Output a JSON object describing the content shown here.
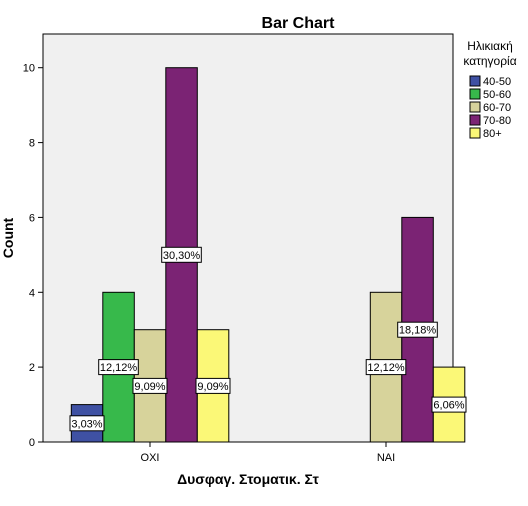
{
  "chart_data": {
    "type": "bar",
    "title": "Bar Chart",
    "xlabel": "Δυσφαγ. Στοματικ. Στ",
    "ylabel": "Count",
    "ylim": [
      0,
      10.9
    ],
    "yticks": [
      0,
      2,
      4,
      6,
      8,
      10
    ],
    "grid": false,
    "categories": [
      "ΟΧΙ",
      "ΝΑΙ"
    ],
    "legend": {
      "title_lines": [
        "Ηλικιακή",
        "κατηγορία"
      ],
      "placement": "right"
    },
    "series": [
      {
        "name": "40-50",
        "color": "#3f51a3",
        "values": [
          1,
          0
        ],
        "labels": [
          "3,03%",
          ""
        ]
      },
      {
        "name": "50-60",
        "color": "#37b94b",
        "values": [
          4,
          0
        ],
        "labels": [
          "12,12%",
          ""
        ]
      },
      {
        "name": "60-70",
        "color": "#d7d39b",
        "values": [
          3,
          4
        ],
        "labels": [
          "9,09%",
          "12,12%"
        ]
      },
      {
        "name": "70-80",
        "color": "#7b2374",
        "values": [
          10,
          6
        ],
        "labels": [
          "30,30%",
          "18,18%"
        ]
      },
      {
        "name": "80+",
        "color": "#fbf877",
        "values": [
          3,
          2
        ],
        "labels": [
          "9,09%",
          "6,06%"
        ]
      }
    ]
  }
}
